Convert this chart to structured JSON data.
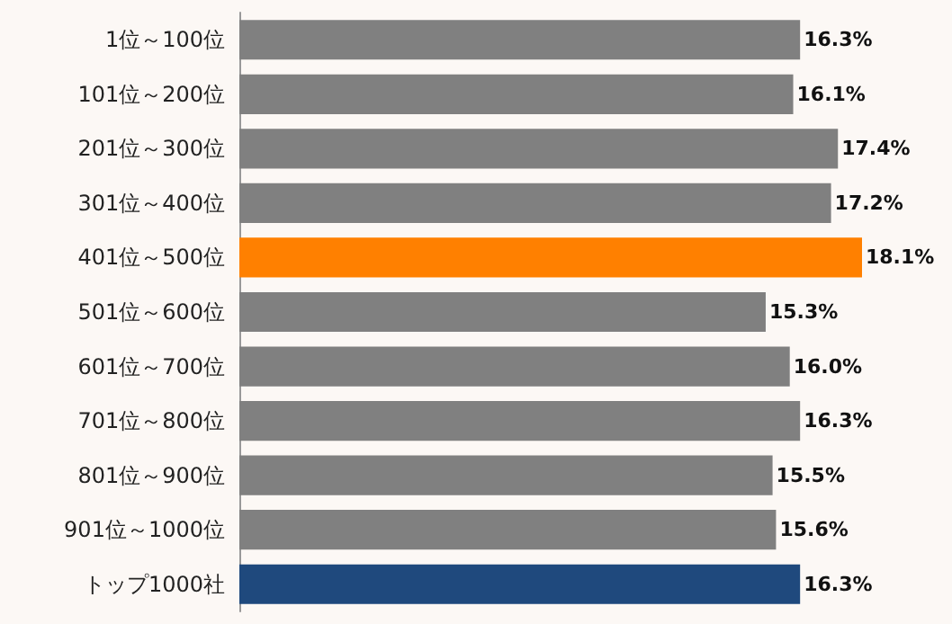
{
  "chart_data": {
    "type": "bar",
    "orientation": "horizontal",
    "categories": [
      "1位～100位",
      "101位～200位",
      "201位～300位",
      "301位～400位",
      "401位～500位",
      "501位～600位",
      "601位～700位",
      "701位～800位",
      "801位～900位",
      "901位～1000位",
      "トップ1000社"
    ],
    "values": [
      16.3,
      16.1,
      17.4,
      17.2,
      18.1,
      15.3,
      16.0,
      16.3,
      15.5,
      15.6,
      16.3
    ],
    "value_labels": [
      "16.3%",
      "16.1%",
      "17.4%",
      "17.2%",
      "18.1%",
      "15.3%",
      "16.0%",
      "16.3%",
      "15.5%",
      "15.6%",
      "16.3%"
    ],
    "colors": [
      "#808080",
      "#808080",
      "#808080",
      "#808080",
      "#ff8000",
      "#808080",
      "#808080",
      "#808080",
      "#808080",
      "#808080",
      "#1f497d"
    ]
  }
}
